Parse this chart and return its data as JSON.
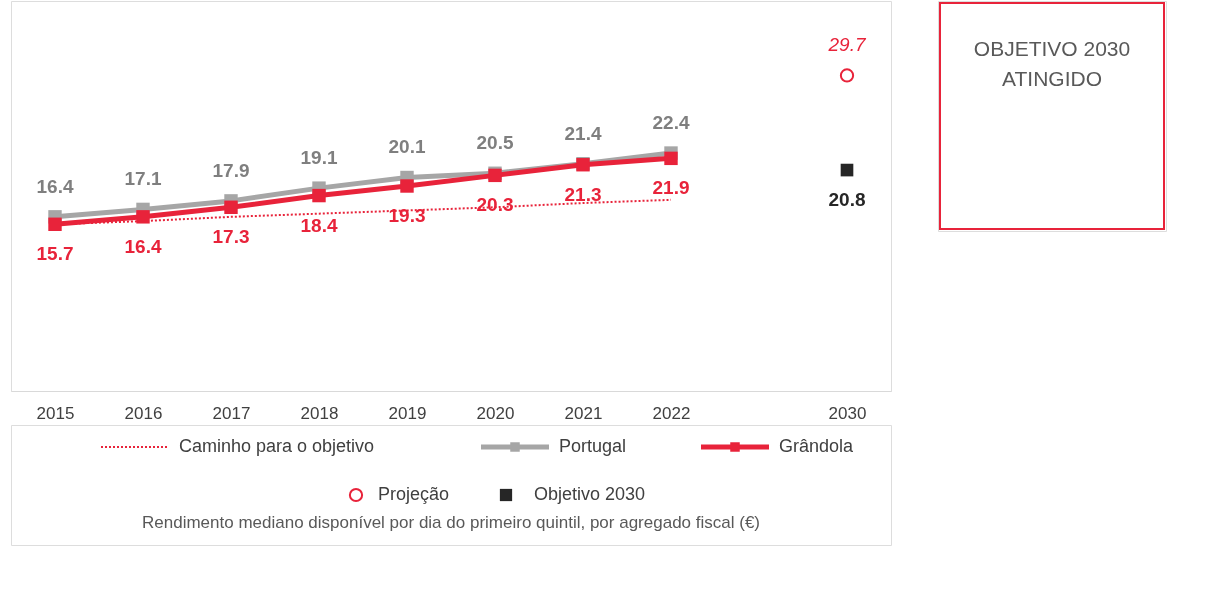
{
  "chart_data": {
    "type": "line",
    "title": "Rendimento mediano disponível por dia do primeiro quintil, por agregado fiscal (€)",
    "categories": [
      "2015",
      "2016",
      "2017",
      "2018",
      "2019",
      "2020",
      "2021",
      "2022",
      null,
      "2030"
    ],
    "series": [
      {
        "name": "Caminho para o objetivo",
        "color": "#e8233a",
        "line_style": "dotted",
        "marker": "none",
        "values": [
          15.7,
          16.0,
          16.4,
          16.7,
          17.0,
          17.3,
          17.7,
          18.0,
          null,
          null
        ]
      },
      {
        "name": "Portugal",
        "color": "#a6a6a6",
        "line_style": "solid",
        "marker": "square",
        "values": [
          16.4,
          17.1,
          17.9,
          19.1,
          20.1,
          20.5,
          21.4,
          22.4,
          null,
          null
        ],
        "value_labels": [
          "16.4",
          "17.1",
          "17.9",
          "19.1",
          "20.1",
          "20.5",
          "21.4",
          "22.4",
          null,
          null
        ]
      },
      {
        "name": "Grândola",
        "color": "#e8233a",
        "line_style": "solid",
        "marker": "square",
        "values": [
          15.7,
          16.4,
          17.3,
          18.4,
          19.3,
          20.3,
          21.3,
          21.9,
          null,
          null
        ],
        "value_labels": [
          "15.7",
          "16.4",
          "17.3",
          "18.4",
          "19.3",
          "20.3",
          "21.3",
          "21.9",
          null,
          null
        ]
      },
      {
        "name": "Projeção",
        "type": "scatter",
        "marker": "circle",
        "color": "#e8233a",
        "values": [
          null,
          null,
          null,
          null,
          null,
          null,
          null,
          null,
          null,
          29.7
        ],
        "value_labels": [
          null,
          null,
          null,
          null,
          null,
          null,
          null,
          null,
          null,
          "29.7"
        ]
      },
      {
        "name": "Objetivo 2030",
        "type": "scatter",
        "marker": "square",
        "color": "#262626",
        "values": [
          null,
          null,
          null,
          null,
          null,
          null,
          null,
          null,
          null,
          20.8
        ],
        "value_labels": [
          null,
          null,
          null,
          null,
          null,
          null,
          null,
          null,
          null,
          "20.8"
        ]
      }
    ],
    "annotations": [
      "OBJETIVO 2030 ATINGIDO"
    ],
    "legend": "bottom",
    "grid": false
  }
}
